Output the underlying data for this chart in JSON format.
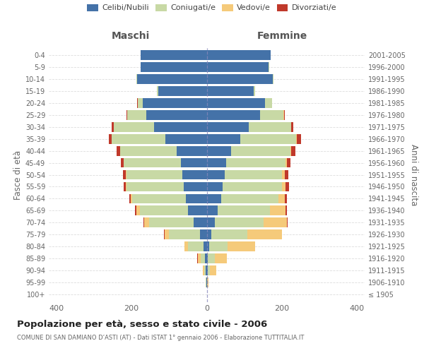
{
  "age_groups": [
    "100+",
    "95-99",
    "90-94",
    "85-89",
    "80-84",
    "75-79",
    "70-74",
    "65-69",
    "60-64",
    "55-59",
    "50-54",
    "45-49",
    "40-44",
    "35-39",
    "30-34",
    "25-29",
    "20-24",
    "15-19",
    "10-14",
    "5-9",
    "0-4"
  ],
  "birth_years": [
    "≤ 1905",
    "1906-1910",
    "1911-1915",
    "1916-1920",
    "1921-1925",
    "1926-1930",
    "1931-1935",
    "1936-1940",
    "1941-1945",
    "1946-1950",
    "1951-1955",
    "1956-1960",
    "1961-1965",
    "1966-1970",
    "1971-1975",
    "1976-1980",
    "1981-1985",
    "1986-1990",
    "1991-1995",
    "1996-2000",
    "2001-2005"
  ],
  "males": {
    "celibi": [
      0,
      1,
      2,
      4,
      8,
      18,
      35,
      50,
      55,
      62,
      65,
      68,
      80,
      110,
      140,
      160,
      170,
      128,
      185,
      175,
      175
    ],
    "coniugati": [
      0,
      1,
      4,
      12,
      42,
      82,
      118,
      128,
      143,
      152,
      148,
      152,
      150,
      142,
      108,
      52,
      14,
      4,
      2,
      1,
      1
    ],
    "vedovi": [
      0,
      0,
      4,
      8,
      9,
      12,
      14,
      9,
      4,
      2,
      2,
      1,
      0,
      0,
      0,
      0,
      0,
      0,
      0,
      0,
      0
    ],
    "divorziati": [
      0,
      0,
      0,
      1,
      1,
      1,
      2,
      3,
      4,
      5,
      7,
      8,
      9,
      8,
      4,
      2,
      1,
      0,
      0,
      0,
      0
    ]
  },
  "females": {
    "nubili": [
      0,
      0,
      2,
      3,
      6,
      13,
      22,
      30,
      38,
      42,
      48,
      52,
      65,
      90,
      112,
      142,
      155,
      125,
      175,
      165,
      170
    ],
    "coniugate": [
      0,
      1,
      6,
      18,
      50,
      95,
      130,
      138,
      152,
      158,
      152,
      158,
      158,
      148,
      112,
      62,
      18,
      4,
      2,
      1,
      1
    ],
    "vedove": [
      0,
      4,
      18,
      32,
      72,
      92,
      62,
      42,
      18,
      10,
      7,
      3,
      1,
      1,
      0,
      1,
      0,
      0,
      0,
      0,
      0
    ],
    "divorziate": [
      0,
      0,
      0,
      0,
      1,
      1,
      2,
      3,
      5,
      8,
      10,
      10,
      12,
      11,
      7,
      3,
      1,
      0,
      0,
      0,
      0
    ]
  },
  "colors": {
    "celibi": "#4472a8",
    "coniugati": "#c8d9a5",
    "vedovi": "#f5ca7a",
    "divorziati": "#c0392b"
  },
  "xlim": 420,
  "xticks": [
    -400,
    -200,
    0,
    200,
    400
  ],
  "title": "Popolazione per età, sesso e stato civile - 2006",
  "subtitle": "COMUNE DI SAN DAMIANO D’ASTI (AT) - Dati ISTAT 1° gennaio 2006 - Elaborazione TUTTITALIA.IT",
  "ylabel_left": "Fasce di età",
  "ylabel_right": "Anni di nascita",
  "xlabel_left": "Maschi",
  "xlabel_right": "Femmine",
  "bg_color": "#ffffff",
  "legend_labels": [
    "Celibi/Nubili",
    "Coniugati/e",
    "Vedovi/e",
    "Divorziati/e"
  ]
}
